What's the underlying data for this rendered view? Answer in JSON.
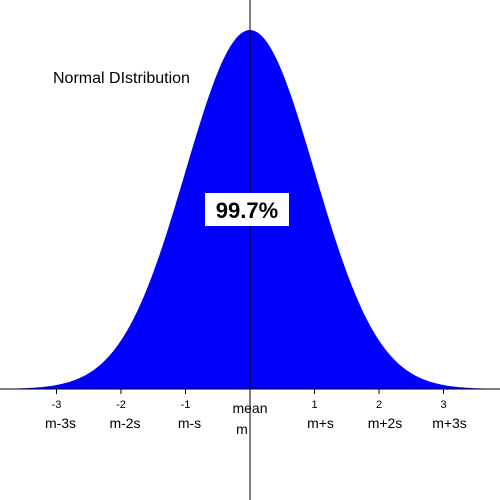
{
  "chart_data": {
    "type": "area",
    "title": "Normal DIstribution",
    "distribution": "normal",
    "xlim": [
      -3.85,
      3.85
    ],
    "shaded_range": [
      -3,
      3
    ],
    "shaded_percent_label": "99.7%",
    "fill_color": "#0000ff",
    "ticks": [
      {
        "value": -3,
        "number": "-3",
        "label": "m-3s"
      },
      {
        "value": -2,
        "number": "-2",
        "label": "m-2s"
      },
      {
        "value": -1,
        "number": "-1",
        "label": "m-s"
      },
      {
        "value": 0,
        "number": "",
        "label": "mean"
      },
      {
        "value": 1,
        "number": "1",
        "label": "m+s"
      },
      {
        "value": 2,
        "number": "2",
        "label": "m+2s"
      },
      {
        "value": 3,
        "number": "3",
        "label": "m+3s"
      }
    ],
    "mean_symbol": "m",
    "grid": false,
    "legend": "none"
  }
}
